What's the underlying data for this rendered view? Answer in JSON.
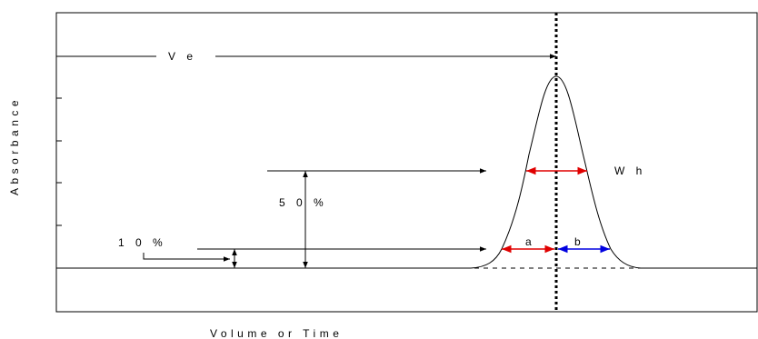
{
  "title": "",
  "axes": {
    "y_label": "Absorbance",
    "x_label": "Volume or Time"
  },
  "annotations": {
    "elution_volume": "V e",
    "half_height_width": "W h",
    "half_height_percent": "5 0 %",
    "ten_percent": "1 0 %",
    "front_half_width": "a",
    "back_half_width": "b"
  },
  "colors": {
    "line": "#000000",
    "front_width_arrow": "#e00000",
    "back_width_arrow": "#0000e0",
    "background": "#ffffff"
  }
}
